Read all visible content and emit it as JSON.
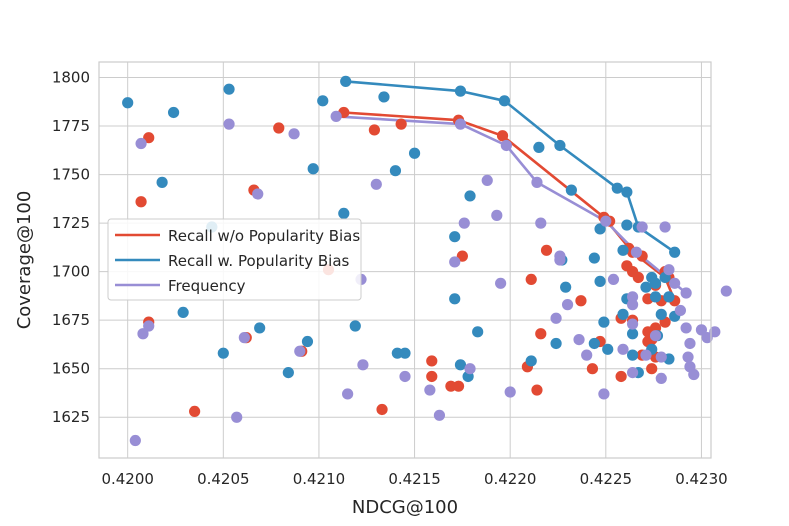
{
  "chart_data": {
    "type": "scatter",
    "title": "",
    "xlabel": "NDCG@100",
    "ylabel": "Coverage@100",
    "xlim": [
      0.41985,
      0.42305
    ],
    "ylim": [
      1604,
      1808
    ],
    "x_ticks": [
      "0.4200",
      "0.4205",
      "0.4210",
      "0.4215",
      "0.4220",
      "0.4225",
      "0.4230"
    ],
    "y_ticks": [
      "1625",
      "1650",
      "1675",
      "1700",
      "1725",
      "1750",
      "1775",
      "1800"
    ],
    "grid": true,
    "legend_position": "left",
    "series": [
      {
        "name": "Recall w/o Popularity Bias",
        "color": "#E24A33",
        "points": [
          [
            0.42007,
            1736
          ],
          [
            0.42011,
            1769
          ],
          [
            0.42011,
            1674
          ],
          [
            0.42035,
            1628
          ],
          [
            0.42062,
            1666
          ],
          [
            0.42066,
            1742
          ],
          [
            0.42079,
            1774
          ],
          [
            0.42091,
            1659
          ],
          [
            0.42105,
            1701
          ],
          [
            0.42113,
            1782
          ],
          [
            0.42129,
            1773
          ],
          [
            0.42133,
            1629
          ],
          [
            0.42143,
            1776
          ],
          [
            0.42159,
            1654
          ],
          [
            0.42159,
            1646
          ],
          [
            0.42169,
            1641
          ],
          [
            0.42173,
            1641
          ],
          [
            0.42173,
            1778
          ],
          [
            0.42175,
            1708
          ],
          [
            0.42196,
            1770
          ],
          [
            0.42209,
            1651
          ],
          [
            0.42211,
            1696
          ],
          [
            0.42214,
            1639
          ],
          [
            0.42216,
            1668
          ],
          [
            0.42219,
            1711
          ],
          [
            0.42237,
            1685
          ],
          [
            0.42243,
            1650
          ],
          [
            0.42247,
            1664
          ],
          [
            0.42249,
            1728
          ],
          [
            0.42252,
            1726
          ],
          [
            0.42258,
            1676
          ],
          [
            0.42258,
            1646
          ],
          [
            0.42261,
            1703
          ],
          [
            0.42262,
            1712
          ],
          [
            0.42264,
            1710
          ],
          [
            0.42264,
            1675
          ],
          [
            0.42264,
            1700
          ],
          [
            0.42267,
            1697
          ],
          [
            0.42269,
            1657
          ],
          [
            0.42269,
            1708
          ],
          [
            0.42272,
            1686
          ],
          [
            0.42272,
            1669
          ],
          [
            0.42272,
            1664
          ],
          [
            0.42274,
            1650
          ],
          [
            0.42274,
            1665
          ],
          [
            0.42276,
            1693
          ],
          [
            0.42276,
            1671
          ],
          [
            0.42276,
            1656
          ],
          [
            0.42279,
            1685
          ],
          [
            0.42281,
            1700
          ],
          [
            0.42281,
            1674
          ],
          [
            0.42283,
            1697
          ],
          [
            0.42286,
            1685
          ]
        ],
        "frontier": [
          [
            0.42113,
            1782
          ],
          [
            0.42173,
            1778
          ],
          [
            0.42196,
            1770
          ],
          [
            0.42249,
            1728
          ],
          [
            0.42264,
            1710
          ],
          [
            0.42281,
            1697
          ],
          [
            0.42286,
            1685
          ]
        ]
      },
      {
        "name": "Recall w. Popularity Bias",
        "color": "#348ABD",
        "points": [
          [
            0.42,
            1787
          ],
          [
            0.42018,
            1746
          ],
          [
            0.42024,
            1782
          ],
          [
            0.42029,
            1679
          ],
          [
            0.42044,
            1723
          ],
          [
            0.4205,
            1658
          ],
          [
            0.42053,
            1794
          ],
          [
            0.42069,
            1671
          ],
          [
            0.42084,
            1648
          ],
          [
            0.42094,
            1664
          ],
          [
            0.42097,
            1753
          ],
          [
            0.42102,
            1788
          ],
          [
            0.42113,
            1730
          ],
          [
            0.42114,
            1798
          ],
          [
            0.42119,
            1672
          ],
          [
            0.42134,
            1790
          ],
          [
            0.4214,
            1752
          ],
          [
            0.42141,
            1658
          ],
          [
            0.42145,
            1658
          ],
          [
            0.4215,
            1761
          ],
          [
            0.42171,
            1718
          ],
          [
            0.42171,
            1686
          ],
          [
            0.42174,
            1793
          ],
          [
            0.42174,
            1652
          ],
          [
            0.42178,
            1646
          ],
          [
            0.42179,
            1739
          ],
          [
            0.42183,
            1669
          ],
          [
            0.42197,
            1788
          ],
          [
            0.42211,
            1654
          ],
          [
            0.42215,
            1764
          ],
          [
            0.42224,
            1663
          ],
          [
            0.42226,
            1765
          ],
          [
            0.42227,
            1706
          ],
          [
            0.42229,
            1692
          ],
          [
            0.42232,
            1742
          ],
          [
            0.42244,
            1707
          ],
          [
            0.42244,
            1663
          ],
          [
            0.42247,
            1722
          ],
          [
            0.42247,
            1695
          ],
          [
            0.42249,
            1674
          ],
          [
            0.42251,
            1660
          ],
          [
            0.42256,
            1743
          ],
          [
            0.42259,
            1711
          ],
          [
            0.42259,
            1678
          ],
          [
            0.42261,
            1741
          ],
          [
            0.42261,
            1724
          ],
          [
            0.42261,
            1686
          ],
          [
            0.42264,
            1668
          ],
          [
            0.42264,
            1657
          ],
          [
            0.42267,
            1723
          ],
          [
            0.42267,
            1648
          ],
          [
            0.42271,
            1692
          ],
          [
            0.42274,
            1697
          ],
          [
            0.42274,
            1660
          ],
          [
            0.42276,
            1694
          ],
          [
            0.42276,
            1687
          ],
          [
            0.42277,
            1667
          ],
          [
            0.42279,
            1678
          ],
          [
            0.42281,
            1697
          ],
          [
            0.42283,
            1687
          ],
          [
            0.42283,
            1655
          ],
          [
            0.42286,
            1710
          ],
          [
            0.42286,
            1677
          ]
        ],
        "frontier": [
          [
            0.42114,
            1798
          ],
          [
            0.42174,
            1793
          ],
          [
            0.42197,
            1788
          ],
          [
            0.42226,
            1765
          ],
          [
            0.42256,
            1743
          ],
          [
            0.42261,
            1741
          ],
          [
            0.42267,
            1723
          ],
          [
            0.42286,
            1710
          ]
        ]
      },
      {
        "name": "Frequency",
        "color": "#988ED5",
        "points": [
          [
            0.42004,
            1613
          ],
          [
            0.42007,
            1766
          ],
          [
            0.42008,
            1668
          ],
          [
            0.42011,
            1672
          ],
          [
            0.42053,
            1776
          ],
          [
            0.42057,
            1625
          ],
          [
            0.42061,
            1666
          ],
          [
            0.42068,
            1740
          ],
          [
            0.42087,
            1771
          ],
          [
            0.4209,
            1659
          ],
          [
            0.42109,
            1780
          ],
          [
            0.42115,
            1637
          ],
          [
            0.42122,
            1696
          ],
          [
            0.42123,
            1652
          ],
          [
            0.4213,
            1745
          ],
          [
            0.42145,
            1646
          ],
          [
            0.42158,
            1639
          ],
          [
            0.42163,
            1626
          ],
          [
            0.42171,
            1705
          ],
          [
            0.42174,
            1776
          ],
          [
            0.42176,
            1725
          ],
          [
            0.42179,
            1650
          ],
          [
            0.42188,
            1747
          ],
          [
            0.42193,
            1729
          ],
          [
            0.42195,
            1694
          ],
          [
            0.42198,
            1765
          ],
          [
            0.422,
            1638
          ],
          [
            0.42214,
            1746
          ],
          [
            0.42216,
            1725
          ],
          [
            0.42224,
            1676
          ],
          [
            0.42226,
            1708
          ],
          [
            0.42226,
            1706
          ],
          [
            0.4223,
            1683
          ],
          [
            0.42236,
            1665
          ],
          [
            0.4224,
            1657
          ],
          [
            0.42249,
            1637
          ],
          [
            0.4225,
            1726
          ],
          [
            0.42254,
            1696
          ],
          [
            0.42259,
            1660
          ],
          [
            0.42264,
            1687
          ],
          [
            0.42264,
            1683
          ],
          [
            0.42264,
            1673
          ],
          [
            0.42264,
            1648
          ],
          [
            0.42266,
            1710
          ],
          [
            0.42269,
            1723
          ],
          [
            0.42271,
            1657
          ],
          [
            0.42276,
            1667
          ],
          [
            0.42279,
            1656
          ],
          [
            0.42279,
            1645
          ],
          [
            0.42281,
            1723
          ],
          [
            0.42283,
            1701
          ],
          [
            0.42286,
            1694
          ],
          [
            0.42289,
            1680
          ],
          [
            0.42292,
            1689
          ],
          [
            0.42292,
            1671
          ],
          [
            0.42293,
            1656
          ],
          [
            0.42294,
            1651
          ],
          [
            0.42294,
            1663
          ],
          [
            0.42296,
            1647
          ],
          [
            0.423,
            1670
          ],
          [
            0.42303,
            1666
          ],
          [
            0.42307,
            1669
          ],
          [
            0.42313,
            1690
          ]
        ],
        "frontier": [
          [
            0.42109,
            1780
          ],
          [
            0.42174,
            1776
          ],
          [
            0.42198,
            1765
          ],
          [
            0.42214,
            1746
          ],
          [
            0.4225,
            1726
          ],
          [
            0.42266,
            1710
          ],
          [
            0.42292,
            1689
          ]
        ]
      }
    ]
  }
}
